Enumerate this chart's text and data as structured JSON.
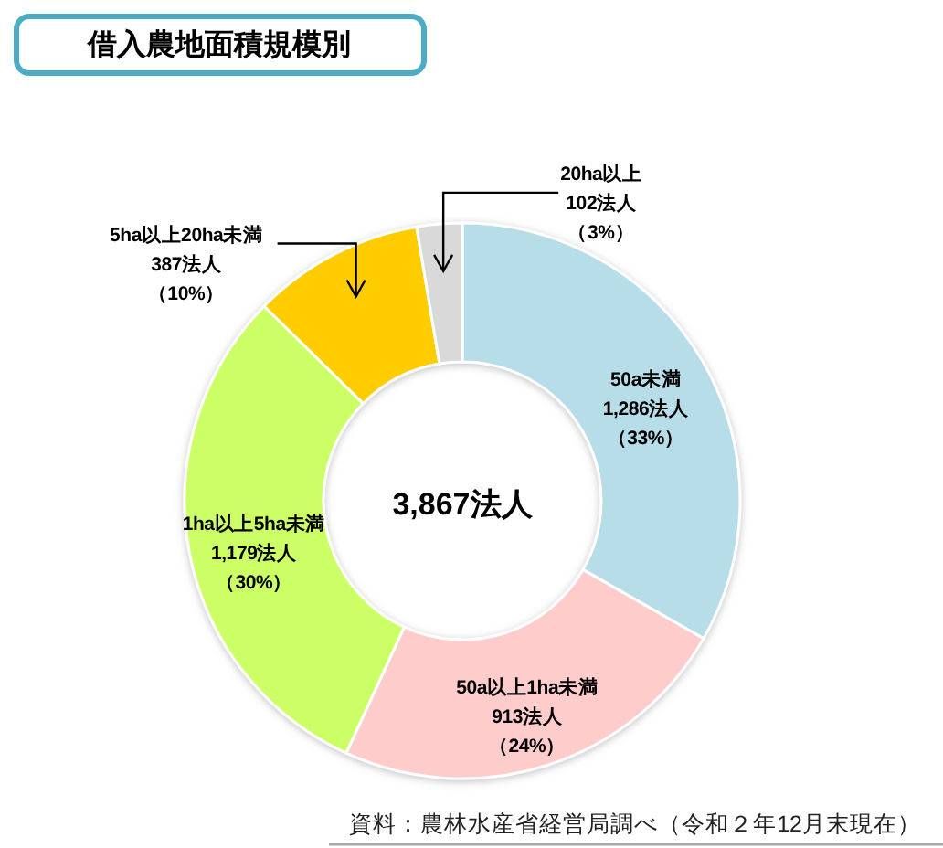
{
  "chart_data": {
    "type": "donut",
    "title": "借入農地面積規模別",
    "categories": [
      "50a未満",
      "50a以上1ha未満",
      "1ha以上5ha未満",
      "5ha以上20ha未満",
      "20ha以上"
    ],
    "values": [
      1286,
      913,
      1179,
      387,
      102
    ],
    "colors": [
      "#b7dde8",
      "#ffcccc",
      "#ccff66",
      "#ffcc00",
      "#d9d9d9"
    ],
    "value_labels": [
      "1,286法人（33%）",
      "913法人（24%）",
      "1,179法人（30%）",
      "387法人（10%）",
      "102法人（3%）"
    ],
    "annotations": [
      "3,867法人",
      "資料：農林水産省経営局調べ（令和２年12月末現在）"
    ]
  }
}
